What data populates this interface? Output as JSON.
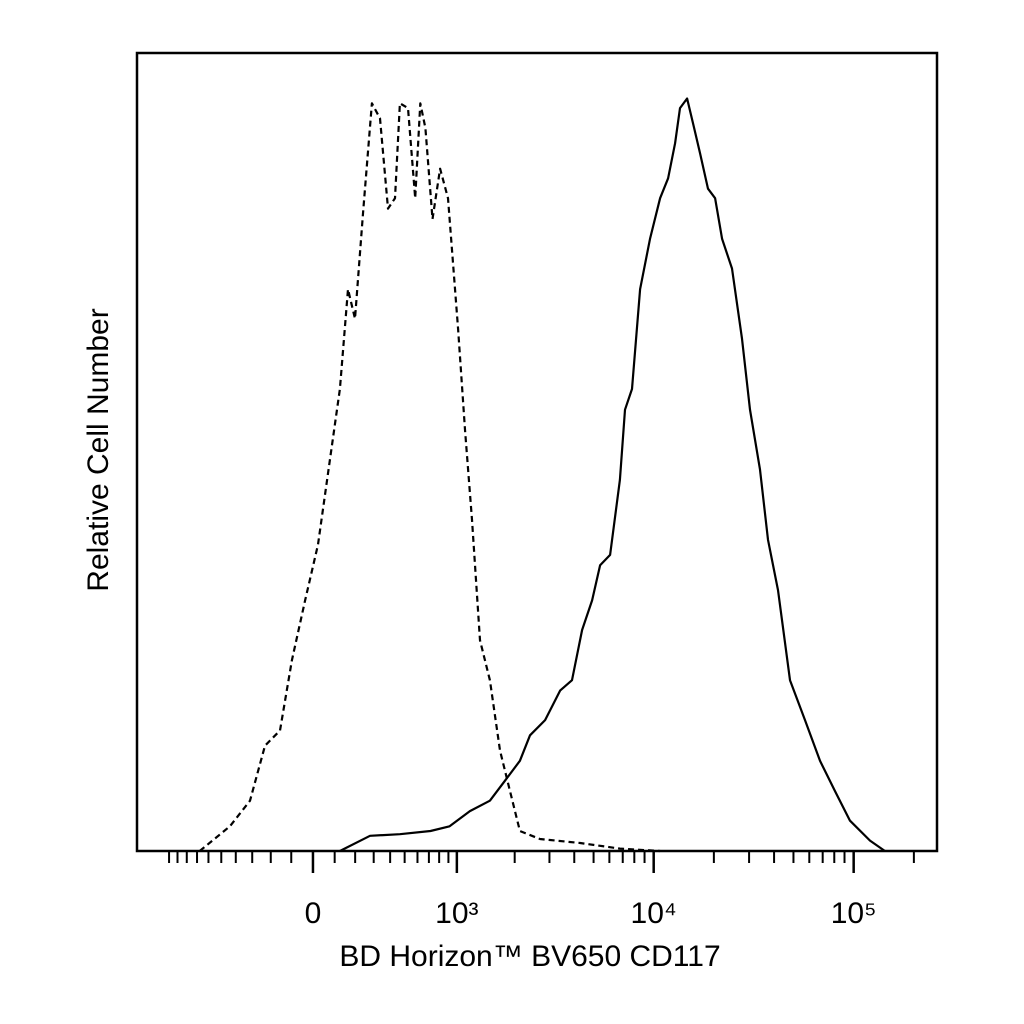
{
  "chart_data": {
    "type": "histogram-line",
    "xlabel": "BD Horizon™ BV650 CD117",
    "ylabel": "Relative Cell Number",
    "xscale": "biexponential",
    "xlim": [
      -1475,
      261000
    ],
    "ylim": [
      0,
      100
    ],
    "xticks": [
      0,
      {
        "value": 1000,
        "label": "10³"
      },
      {
        "value": 10000,
        "label": "10⁴"
      },
      {
        "value": 100000,
        "label": "10⁵"
      }
    ],
    "xminorticks": [
      -1000,
      -900,
      -800,
      -700,
      -600,
      -500,
      -400,
      -300,
      -200,
      -100,
      100,
      200,
      300,
      400,
      500,
      600,
      700,
      800,
      900,
      2000,
      3000,
      4000,
      5000,
      6000,
      7000,
      8000,
      9000,
      20000,
      30000,
      40000,
      50000,
      60000,
      70000,
      80000,
      90000,
      200000
    ],
    "series": [
      {
        "color": "#000000",
        "style": "dashed",
        "x": [
          -676,
          -439,
          -313,
          -230,
          -154,
          -97,
          -36,
          23,
          78,
          125,
          164,
          199,
          241,
          290,
          337,
          386,
          432,
          466,
          525,
          581,
          624,
          668,
          734,
          810,
          895,
          1015,
          1105,
          1204,
          1325,
          1492,
          1683,
          1893,
          2127,
          2685,
          4277,
          6772,
          10771
        ],
        "values": [
          0,
          3.1,
          6.3,
          13.2,
          15.1,
          23.9,
          31.4,
          38.4,
          49.1,
          57.9,
          70.4,
          66.7,
          79.9,
          93.7,
          91.8,
          80.5,
          81.8,
          93.7,
          93.1,
          81.8,
          93.7,
          90.6,
          79.2,
          85.5,
          81.8,
          65.4,
          52.8,
          41.5,
          26.4,
          21.4,
          12.6,
          7.5,
          2.5,
          1.5,
          1.0,
          0.3,
          0
        ]
      },
      {
        "color": "#000000",
        "style": "solid",
        "x": [
          125,
          279,
          466,
          715,
          913,
          1174,
          1492,
          1782,
          2127,
          2392,
          2851,
          3394,
          3897,
          4380,
          4914,
          5390,
          6047,
          6772,
          7183,
          7793,
          8546,
          9583,
          10771,
          11801,
          12791,
          13543,
          14692,
          15721,
          17068,
          18691,
          20275,
          21978,
          24631,
          27641,
          30334,
          34016,
          37303,
          41857,
          48074,
          57103,
          67874,
          80665,
          95832,
          120661,
          143352
        ],
        "values": [
          0,
          1.9,
          2.1,
          2.5,
          3.1,
          5.0,
          6.3,
          8.8,
          11.3,
          14.5,
          16.4,
          20.1,
          21.4,
          27.7,
          31.4,
          35.8,
          37.1,
          46.5,
          55.3,
          57.9,
          70.4,
          76.7,
          81.8,
          84.3,
          88.7,
          93.1,
          94.3,
          91.2,
          87.4,
          83.0,
          81.8,
          76.7,
          73.0,
          64.2,
          55.3,
          47.8,
          39.0,
          32.7,
          21.4,
          16.4,
          11.3,
          7.5,
          3.8,
          1.3,
          0
        ]
      }
    ]
  }
}
